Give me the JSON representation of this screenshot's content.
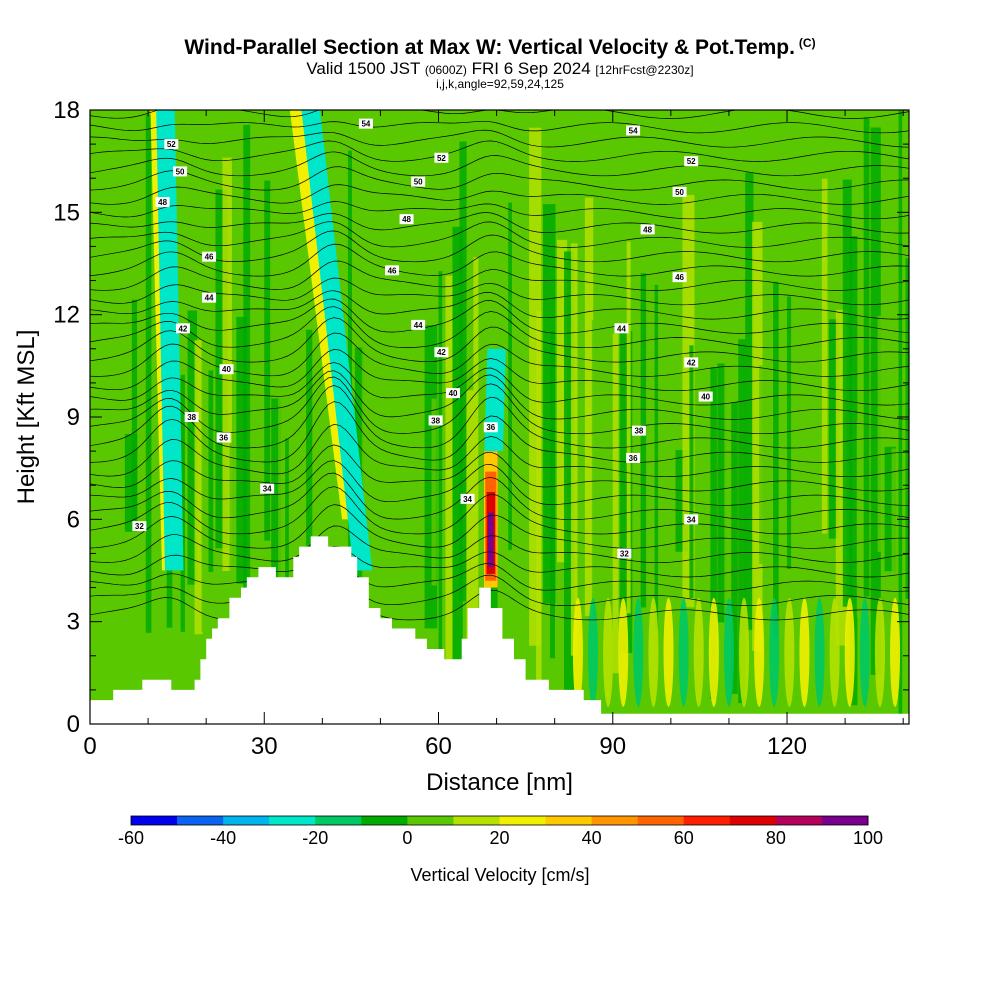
{
  "header": {
    "title": "Wind-Parallel Section at Max W: Vertical Velocity & Pot.Temp.",
    "title_units": "(C)",
    "valid_prefix": "Valid 1500 JST",
    "valid_utc": "(0600Z)",
    "valid_date": "FRI 6 Sep 2024",
    "forecast_info": "[12hrFcst@2230z]",
    "section_params": "i,j,k,angle=92,59,24,125"
  },
  "chart_data": {
    "type": "heatmap",
    "title": "Wind-Parallel Section at Max W: Vertical Velocity & Pot.Temp.",
    "xlabel": "Distance [nm]",
    "ylabel": "Height [Kft MSL]",
    "xlim": [
      0,
      141
    ],
    "ylim": [
      0,
      18
    ],
    "x_ticks": [
      "0",
      "30",
      "60",
      "90",
      "120"
    ],
    "x_tick_values": [
      0,
      30,
      60,
      90,
      120
    ],
    "y_ticks": [
      "0",
      "3",
      "6",
      "9",
      "12",
      "15",
      "18"
    ],
    "y_tick_values": [
      0,
      3,
      6,
      9,
      12,
      15,
      18
    ],
    "colorbar": {
      "label": "Vertical Velocity [cm/s]",
      "min": -60,
      "max": 100,
      "step": 10,
      "tick_labels": [
        "-60",
        "-40",
        "-20",
        "0",
        "20",
        "40",
        "60",
        "80",
        "100"
      ],
      "colors": [
        "#0000ee",
        "#0a64f0",
        "#00b4f0",
        "#00e6c8",
        "#00c864",
        "#00aa00",
        "#5ac800",
        "#b4e100",
        "#f0f000",
        "#ffc800",
        "#ff9600",
        "#ff6400",
        "#ff1e00",
        "#dc0000",
        "#b4005a",
        "#78008c"
      ]
    },
    "terrain_kft": [
      [
        0,
        0.7
      ],
      [
        4,
        0.7
      ],
      [
        4,
        1.0
      ],
      [
        9,
        1.0
      ],
      [
        9,
        1.3
      ],
      [
        14,
        1.3
      ],
      [
        14,
        1.0
      ],
      [
        18,
        1.0
      ],
      [
        18,
        1.3
      ],
      [
        19,
        1.3
      ],
      [
        19,
        1.9
      ],
      [
        20,
        1.9
      ],
      [
        20,
        2.5
      ],
      [
        21,
        2.5
      ],
      [
        21,
        2.8
      ],
      [
        22,
        2.8
      ],
      [
        22,
        3.1
      ],
      [
        24,
        3.1
      ],
      [
        24,
        3.7
      ],
      [
        26,
        3.7
      ],
      [
        26,
        4.0
      ],
      [
        27,
        4.0
      ],
      [
        27,
        4.3
      ],
      [
        29,
        4.3
      ],
      [
        29,
        4.6
      ],
      [
        32,
        4.6
      ],
      [
        32,
        4.3
      ],
      [
        35,
        4.3
      ],
      [
        35,
        4.9
      ],
      [
        36,
        4.9
      ],
      [
        36,
        5.2
      ],
      [
        38,
        5.2
      ],
      [
        38,
        5.5
      ],
      [
        41,
        5.5
      ],
      [
        41,
        5.2
      ],
      [
        45,
        5.2
      ],
      [
        45,
        4.9
      ],
      [
        46,
        4.9
      ],
      [
        46,
        4.3
      ],
      [
        48,
        4.3
      ],
      [
        48,
        3.4
      ],
      [
        50,
        3.4
      ],
      [
        50,
        3.1
      ],
      [
        52,
        3.1
      ],
      [
        52,
        2.8
      ],
      [
        56,
        2.8
      ],
      [
        56,
        2.5
      ],
      [
        58,
        2.5
      ],
      [
        58,
        2.2
      ],
      [
        61,
        2.2
      ],
      [
        61,
        1.9
      ],
      [
        64,
        1.9
      ],
      [
        64,
        2.5
      ],
      [
        65,
        2.5
      ],
      [
        65,
        3.4
      ],
      [
        67,
        3.4
      ],
      [
        67,
        4.0
      ],
      [
        69,
        4.0
      ],
      [
        69,
        3.4
      ],
      [
        71,
        3.4
      ],
      [
        71,
        2.5
      ],
      [
        73,
        2.5
      ],
      [
        73,
        1.9
      ],
      [
        75,
        1.9
      ],
      [
        75,
        1.3
      ],
      [
        79,
        1.3
      ],
      [
        79,
        1.0
      ],
      [
        85,
        1.0
      ],
      [
        85,
        0.7
      ],
      [
        88,
        0.7
      ],
      [
        88,
        0.3
      ],
      [
        141,
        0.3
      ]
    ],
    "theta_contour_labels": [
      {
        "text": "32",
        "x": 8.5,
        "y": 5.8
      },
      {
        "text": "34",
        "x": 30.5,
        "y": 6.9
      },
      {
        "text": "36",
        "x": 23,
        "y": 8.4
      },
      {
        "text": "38",
        "x": 17.5,
        "y": 9.0
      },
      {
        "text": "40",
        "x": 23.5,
        "y": 10.4
      },
      {
        "text": "42",
        "x": 16,
        "y": 11.6
      },
      {
        "text": "44",
        "x": 20.5,
        "y": 12.5
      },
      {
        "text": "46",
        "x": 20.5,
        "y": 13.7
      },
      {
        "text": "48",
        "x": 12.5,
        "y": 15.3
      },
      {
        "text": "50",
        "x": 15.5,
        "y": 16.2
      },
      {
        "text": "52",
        "x": 14,
        "y": 17.0
      },
      {
        "text": "54",
        "x": 47.5,
        "y": 17.6
      },
      {
        "text": "52",
        "x": 60.5,
        "y": 16.6
      },
      {
        "text": "50",
        "x": 56.5,
        "y": 15.9
      },
      {
        "text": "48",
        "x": 54.5,
        "y": 14.8
      },
      {
        "text": "46",
        "x": 52,
        "y": 13.3
      },
      {
        "text": "44",
        "x": 56.5,
        "y": 11.7
      },
      {
        "text": "42",
        "x": 60.5,
        "y": 10.9
      },
      {
        "text": "40",
        "x": 62.5,
        "y": 9.7
      },
      {
        "text": "38",
        "x": 59.5,
        "y": 8.9
      },
      {
        "text": "36",
        "x": 69,
        "y": 8.7
      },
      {
        "text": "34",
        "x": 65,
        "y": 6.6
      },
      {
        "text": "54",
        "x": 93.5,
        "y": 17.4
      },
      {
        "text": "52",
        "x": 103.5,
        "y": 16.5
      },
      {
        "text": "50",
        "x": 101.5,
        "y": 15.6
      },
      {
        "text": "48",
        "x": 96,
        "y": 14.5
      },
      {
        "text": "46",
        "x": 101.5,
        "y": 13.1
      },
      {
        "text": "44",
        "x": 91.5,
        "y": 11.6
      },
      {
        "text": "42",
        "x": 103.5,
        "y": 10.6
      },
      {
        "text": "40",
        "x": 106,
        "y": 9.6
      },
      {
        "text": "38",
        "x": 94.5,
        "y": 8.6
      },
      {
        "text": "36",
        "x": 93.5,
        "y": 7.8
      },
      {
        "text": "34",
        "x": 103.5,
        "y": 6.0
      },
      {
        "text": "32",
        "x": 92,
        "y": 5.0
      }
    ],
    "vv_features": [
      {
        "type": "plume",
        "x_base": 14,
        "y_base": 4.5,
        "x_top": 12,
        "y_top": 18,
        "value": 20
      },
      {
        "type": "plume",
        "x_base": 14.5,
        "y_base": 4.5,
        "x_top": 13,
        "y_top": 18,
        "value": -30
      },
      {
        "type": "plume",
        "x_base": 45,
        "y_base": 6,
        "x_top": 36,
        "y_top": 18,
        "value": 20
      },
      {
        "type": "plume",
        "x_base": 47,
        "y_base": 4.5,
        "x_top": 38,
        "y_top": 18,
        "value": -30
      },
      {
        "type": "plume",
        "x_base": 69,
        "y_base": 4.0,
        "x_top": 69,
        "y_top": 8.0,
        "value": 100
      },
      {
        "type": "plume",
        "x_base": 69.5,
        "y_base": 8,
        "x_top": 70,
        "y_top": 11,
        "value": -30
      }
    ]
  }
}
